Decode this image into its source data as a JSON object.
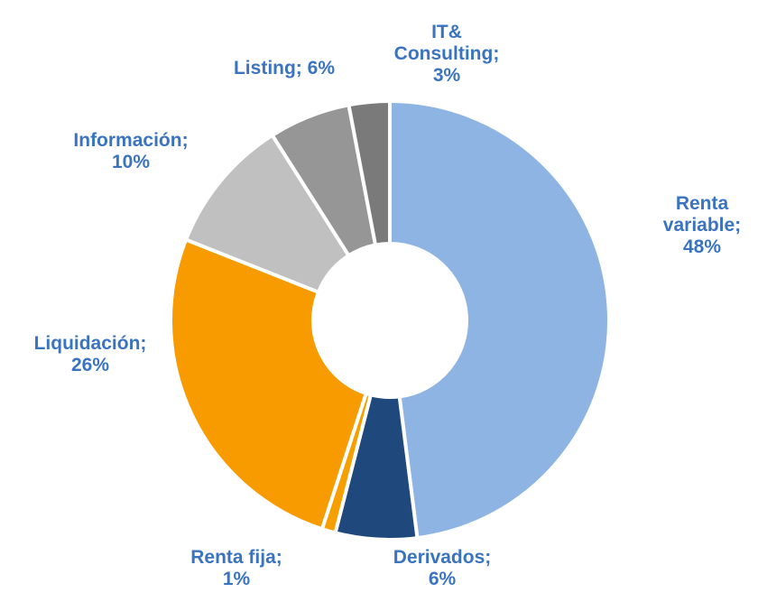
{
  "chart_data": {
    "type": "donut",
    "categories": [
      "Renta variable;",
      "Derivados;",
      "Renta fija;",
      "Liquidación;",
      "Información;",
      "Listing;",
      "IT& Consulting;"
    ],
    "values": [
      48,
      6,
      1,
      26,
      10,
      6,
      3
    ],
    "value_labels": [
      "48%",
      "6%",
      "1%",
      "26%",
      "10%",
      "6%",
      "3%"
    ],
    "colors": [
      "#8db4e2",
      "#1f497d",
      "#f5a000",
      "#f79b00",
      "#c0c0c0",
      "#969696",
      "#7a7a7a"
    ]
  }
}
